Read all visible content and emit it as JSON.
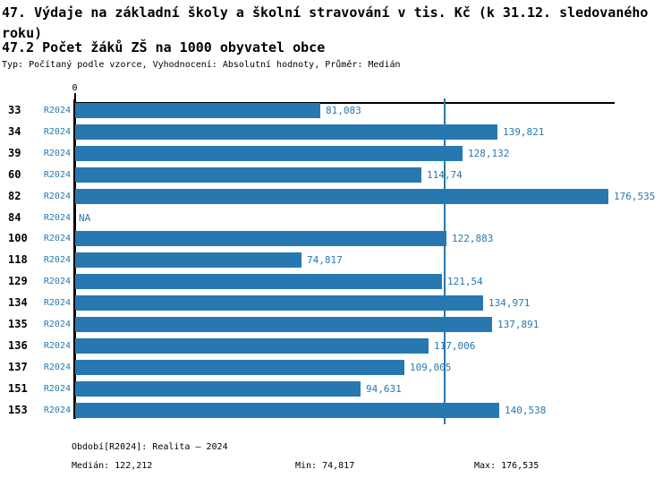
{
  "header": {
    "title": "47. Výdaje na základní školy a školní stravování v tis. Kč (k 31.12. sledovaného roku)",
    "subtitle": "47.2 Počet žáků ZŠ na 1000 obyvatel obce",
    "meta": "Typ: Počítaný podle vzorce, Vyhodnocení: Absolutní hodnoty, Průměr: Medián"
  },
  "axis": {
    "zero_label": "0"
  },
  "chart_data": {
    "type": "bar",
    "orientation": "horizontal",
    "title": "47. Výdaje na základní školy a školní stravování v tis. Kč (k 31.12. sledovaného roku)",
    "subtitle": "47.2 Počet žáků ZŠ na 1000 obyvatel obce",
    "series_name": "R2024",
    "categories": [
      "33",
      "34",
      "39",
      "60",
      "82",
      "84",
      "100",
      "118",
      "129",
      "134",
      "135",
      "136",
      "137",
      "151",
      "153"
    ],
    "rows": [
      {
        "category": "33",
        "series": "R2024",
        "value": 81.083,
        "value_label": "81,083"
      },
      {
        "category": "34",
        "series": "R2024",
        "value": 139.821,
        "value_label": "139,821"
      },
      {
        "category": "39",
        "series": "R2024",
        "value": 128.132,
        "value_label": "128,132"
      },
      {
        "category": "60",
        "series": "R2024",
        "value": 114.74,
        "value_label": "114,74"
      },
      {
        "category": "82",
        "series": "R2024",
        "value": 176.535,
        "value_label": "176,535"
      },
      {
        "category": "84",
        "series": "R2024",
        "value": null,
        "value_label": "NA"
      },
      {
        "category": "100",
        "series": "R2024",
        "value": 122.883,
        "value_label": "122,883"
      },
      {
        "category": "118",
        "series": "R2024",
        "value": 74.817,
        "value_label": "74,817"
      },
      {
        "category": "129",
        "series": "R2024",
        "value": 121.54,
        "value_label": "121,54"
      },
      {
        "category": "134",
        "series": "R2024",
        "value": 134.971,
        "value_label": "134,971"
      },
      {
        "category": "135",
        "series": "R2024",
        "value": 137.891,
        "value_label": "137,891"
      },
      {
        "category": "136",
        "series": "R2024",
        "value": 117.006,
        "value_label": "117,006"
      },
      {
        "category": "137",
        "series": "R2024",
        "value": 109.005,
        "value_label": "109,005"
      },
      {
        "category": "151",
        "series": "R2024",
        "value": 94.631,
        "value_label": "94,631"
      },
      {
        "category": "153",
        "series": "R2024",
        "value": 140.538,
        "value_label": "140,538"
      }
    ],
    "median": 122.212,
    "min": 74.817,
    "max": 176.535,
    "xlim": [
      0,
      178
    ],
    "grid": false,
    "bar_color": "#2778b0",
    "median_line_color": "#2778b0"
  },
  "footer": {
    "period_line": "Období[R2024]: Realita – 2024",
    "median_stat": "Medián: 122,212",
    "min_stat": "Min: 74,817",
    "max_stat": "Max: 176,535"
  },
  "colors": {
    "accent_blue": "#2778b0",
    "axis_black": "#000000",
    "background": "#ffffff"
  }
}
